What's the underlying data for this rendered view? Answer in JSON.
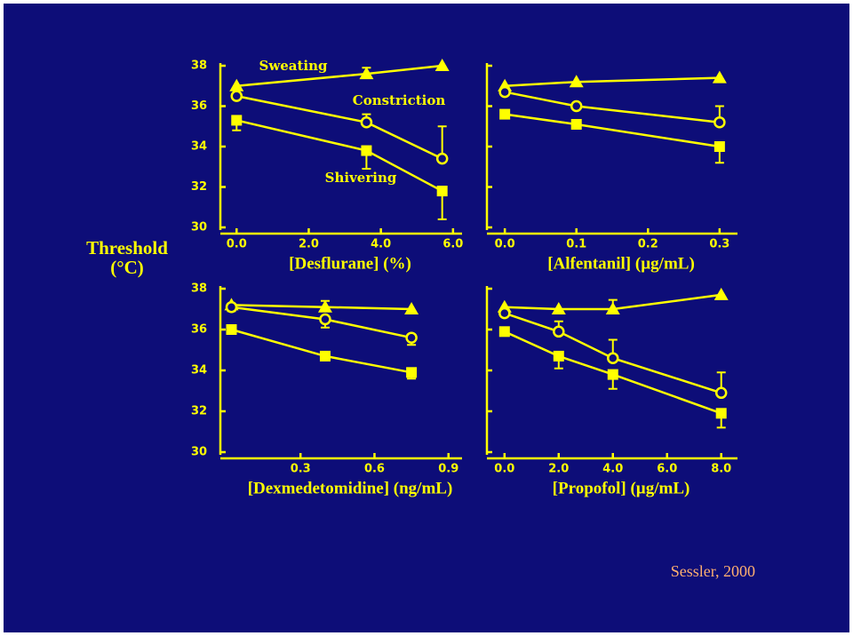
{
  "ylabel": [
    "Threshold",
    "(°C)"
  ],
  "source": "Sessler, 2000",
  "chart_data": [
    {
      "type": "line",
      "xlabel": "[Desflurane] (%)",
      "x": [
        0,
        3.6,
        5.7
      ],
      "xlim": [
        -0.45,
        6.25
      ],
      "xticks": [
        {
          "value": 0,
          "label": "0.0"
        },
        {
          "value": 2,
          "label": "2.0"
        },
        {
          "value": 4,
          "label": "4.0"
        },
        {
          "value": 6,
          "label": "6.0"
        }
      ],
      "ylim": [
        30,
        38
      ],
      "yticks": [
        30,
        32,
        34,
        36,
        38
      ],
      "series": [
        {
          "name": "Sweating",
          "color": "#ffff00",
          "values": [
            37.0,
            37.6,
            38.0
          ],
          "errors": [
            null,
            0.3,
            null
          ]
        },
        {
          "name": "Constriction",
          "color": "#ffff00",
          "values": [
            36.5,
            35.2,
            33.4
          ],
          "errors": [
            null,
            0.4,
            1.6
          ]
        },
        {
          "name": "Shivering",
          "color": "#ffff00",
          "values": [
            35.3,
            33.8,
            31.8
          ],
          "errors": [
            0.5,
            0.9,
            1.4
          ]
        }
      ]
    },
    {
      "type": "line",
      "xlabel": "[Alfentanil] (µg/mL)",
      "x": [
        0,
        0.1,
        0.3
      ],
      "xlim": [
        -0.025,
        0.325
      ],
      "xticks": [
        {
          "value": 0,
          "label": "0.0"
        },
        0.1,
        0.2,
        0.3
      ],
      "ylim": [
        30,
        38
      ],
      "yticks": [
        30,
        32,
        34,
        36,
        38
      ],
      "series": [
        {
          "color": "#ffff00",
          "values": [
            37.0,
            37.2,
            37.4
          ],
          "errors": [
            null,
            null,
            null
          ]
        },
        {
          "color": "#ffff00",
          "values": [
            36.7,
            36.0,
            35.2
          ],
          "errors": [
            null,
            null,
            0.8
          ]
        },
        {
          "color": "#ffff00",
          "values": [
            35.6,
            35.1,
            34.0
          ],
          "errors": [
            0.2,
            null,
            0.8
          ]
        }
      ]
    },
    {
      "type": "line",
      "xlabel": "[Dexmedetomidine] (ng/mL)",
      "x": [
        0.02,
        0.4,
        0.75
      ],
      "xlim": [
        -0.025,
        0.955
      ],
      "xticks": [
        0.3,
        0.6,
        0.9
      ],
      "ylim": [
        30,
        38
      ],
      "yticks": [
        30,
        32,
        34,
        36,
        38
      ],
      "series": [
        {
          "color": "#ffff00",
          "values": [
            37.2,
            37.1,
            37.0
          ],
          "errors": [
            null,
            0.3,
            null
          ]
        },
        {
          "color": "#ffff00",
          "values": [
            37.1,
            36.5,
            35.6
          ],
          "errors": [
            0.2,
            0.4,
            0.35
          ]
        },
        {
          "color": "#ffff00",
          "values": [
            36.0,
            34.7,
            33.9
          ],
          "errors": [
            0.2,
            0.2,
            0.3
          ]
        }
      ]
    },
    {
      "type": "line",
      "xlabel": "[Propofol] (µg/mL)",
      "x": [
        0,
        2,
        4,
        8
      ],
      "xlim": [
        -0.65,
        8.6
      ],
      "xticks": [
        {
          "value": 0,
          "label": "0.0"
        },
        {
          "value": 2,
          "label": "2.0"
        },
        {
          "value": 4,
          "label": "4.0"
        },
        {
          "value": 6,
          "label": "6.0"
        },
        {
          "value": 8,
          "label": "8.0"
        }
      ],
      "ylim": [
        30,
        38
      ],
      "yticks": [
        30,
        32,
        34,
        36,
        38
      ],
      "series": [
        {
          "color": "#ffff00",
          "values": [
            37.1,
            37.0,
            37.0,
            37.7
          ],
          "errors": [
            null,
            null,
            0.45,
            null
          ]
        },
        {
          "color": "#ffff00",
          "values": [
            36.8,
            35.9,
            34.6,
            32.9
          ],
          "errors": [
            null,
            0.5,
            0.9,
            1.0
          ]
        },
        {
          "color": "#ffff00",
          "values": [
            35.9,
            34.7,
            33.8,
            31.9
          ],
          "errors": [
            null,
            0.6,
            0.7,
            0.7
          ]
        }
      ]
    }
  ]
}
